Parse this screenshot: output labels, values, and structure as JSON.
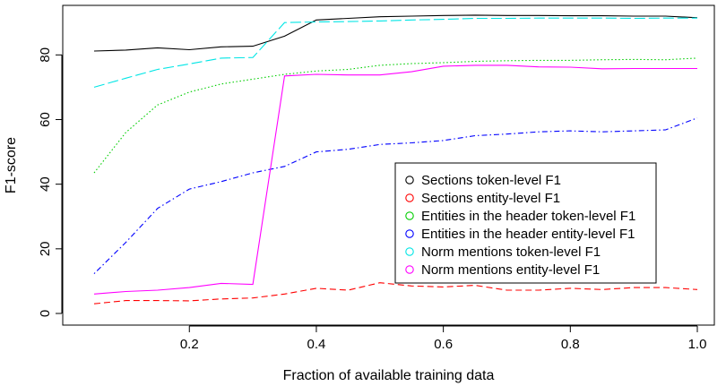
{
  "chart_data": {
    "type": "line",
    "xlabel": "Fraction of available training data",
    "ylabel": "F1-score",
    "xlim": [
      0.05,
      1.0
    ],
    "ylim": [
      0,
      92
    ],
    "xticks": [
      0.2,
      0.4,
      0.6,
      0.8,
      1.0
    ],
    "xtick_labels": [
      "0.2",
      "0.4",
      "0.6",
      "0.8",
      "1.0"
    ],
    "yticks": [
      0,
      20,
      40,
      60,
      80
    ],
    "ytick_labels": [
      "0",
      "20",
      "40",
      "60",
      "80"
    ],
    "grid": false,
    "legend_position": "center-right",
    "x": [
      0.05,
      0.1,
      0.15,
      0.2,
      0.25,
      0.3,
      0.35,
      0.4,
      0.45,
      0.5,
      0.55,
      0.6,
      0.65,
      0.7,
      0.75,
      0.8,
      0.85,
      0.9,
      0.95,
      1.0
    ],
    "series": [
      {
        "name": "Sections token-level F1",
        "color": "#000000",
        "dash": "solid",
        "values": [
          81.2,
          81.5,
          82.2,
          81.6,
          82.5,
          82.7,
          85.8,
          90.8,
          91.3,
          91.8,
          92.0,
          92.2,
          92.3,
          92.2,
          92.2,
          92.1,
          92.1,
          92.0,
          92.0,
          91.5
        ]
      },
      {
        "name": "Sections entity-level F1",
        "color": "#ff0000",
        "dash": "dashed",
        "values": [
          3.0,
          4.0,
          4.0,
          3.9,
          4.5,
          4.8,
          6.0,
          7.8,
          7.2,
          9.5,
          8.5,
          8.2,
          8.7,
          7.2,
          7.2,
          7.8,
          7.4,
          8.0,
          8.0,
          7.4
        ]
      },
      {
        "name": "Entities in the header token-level F1",
        "color": "#00cd00",
        "dash": "dotted",
        "values": [
          43.5,
          56.0,
          64.5,
          68.5,
          71.0,
          72.5,
          74.0,
          75.0,
          75.5,
          76.8,
          77.3,
          77.6,
          78.0,
          78.2,
          78.3,
          78.3,
          78.5,
          78.6,
          78.5,
          79.0
        ]
      },
      {
        "name": "Entities in the header entity-level F1",
        "color": "#0000ff",
        "dash": "dotdash",
        "values": [
          12.3,
          22.0,
          32.5,
          38.5,
          40.8,
          43.5,
          45.5,
          50.0,
          50.8,
          52.3,
          52.8,
          53.5,
          55.0,
          55.5,
          56.2,
          56.5,
          56.2,
          56.5,
          56.8,
          60.5
        ]
      },
      {
        "name": "Norm mentions token-level F1",
        "color": "#00e5e5",
        "dash": "longdash",
        "values": [
          70.0,
          72.8,
          75.5,
          77.2,
          79.0,
          79.2,
          90.0,
          90.2,
          90.3,
          90.5,
          90.8,
          91.0,
          91.3,
          91.3,
          91.4,
          91.4,
          91.4,
          91.3,
          91.4,
          91.4
        ]
      },
      {
        "name": "Norm mentions entity-level F1",
        "color": "#ff00ff",
        "dash": "solid",
        "values": [
          6.0,
          6.8,
          7.2,
          8.0,
          9.3,
          9.0,
          73.5,
          74.0,
          73.8,
          73.8,
          74.8,
          76.5,
          76.8,
          76.8,
          76.3,
          76.2,
          75.7,
          75.8,
          75.8,
          75.8
        ]
      }
    ]
  }
}
